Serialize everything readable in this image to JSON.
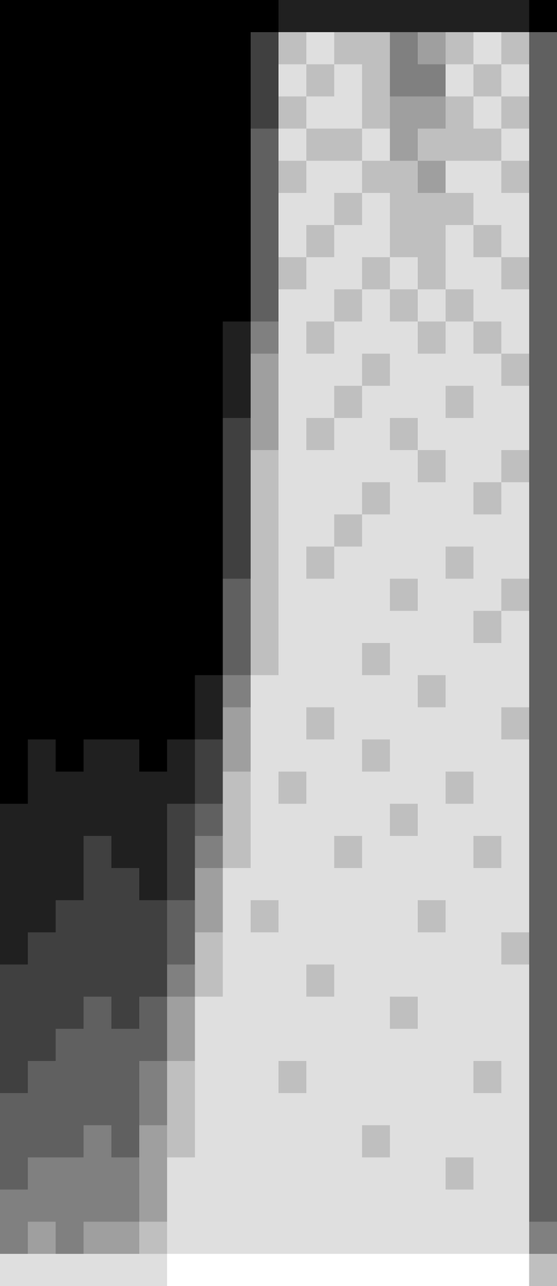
{
  "chart_data": {
    "type": "heatmap",
    "tick_labels": false,
    "grid": false,
    "cells": [
      [
        0,
        0,
        0,
        0,
        0,
        0,
        0,
        0,
        0,
        0,
        1,
        1,
        1,
        1,
        1,
        1,
        1,
        1,
        1,
        0
      ],
      [
        0,
        0,
        0,
        0,
        0,
        0,
        0,
        0,
        0,
        2,
        6,
        7,
        6,
        6,
        4,
        5,
        6,
        7,
        6,
        3
      ],
      [
        0,
        0,
        0,
        0,
        0,
        0,
        0,
        0,
        0,
        2,
        7,
        6,
        7,
        6,
        4,
        4,
        7,
        6,
        7,
        3
      ],
      [
        0,
        0,
        0,
        0,
        0,
        0,
        0,
        0,
        0,
        2,
        6,
        7,
        7,
        6,
        5,
        5,
        6,
        7,
        6,
        3
      ],
      [
        0,
        0,
        0,
        0,
        0,
        0,
        0,
        0,
        0,
        3,
        7,
        6,
        6,
        7,
        5,
        6,
        6,
        6,
        7,
        3
      ],
      [
        0,
        0,
        0,
        0,
        0,
        0,
        0,
        0,
        0,
        3,
        6,
        7,
        7,
        6,
        6,
        5,
        7,
        7,
        6,
        3
      ],
      [
        0,
        0,
        0,
        0,
        0,
        0,
        0,
        0,
        0,
        3,
        7,
        7,
        6,
        7,
        6,
        6,
        6,
        7,
        7,
        3
      ],
      [
        0,
        0,
        0,
        0,
        0,
        0,
        0,
        0,
        0,
        3,
        7,
        6,
        7,
        7,
        6,
        6,
        7,
        6,
        7,
        3
      ],
      [
        0,
        0,
        0,
        0,
        0,
        0,
        0,
        0,
        0,
        3,
        6,
        7,
        7,
        6,
        7,
        6,
        7,
        7,
        6,
        3
      ],
      [
        0,
        0,
        0,
        0,
        0,
        0,
        0,
        0,
        0,
        3,
        7,
        7,
        6,
        7,
        6,
        7,
        6,
        7,
        7,
        3
      ],
      [
        0,
        0,
        0,
        0,
        0,
        0,
        0,
        0,
        1,
        4,
        7,
        6,
        7,
        7,
        7,
        6,
        7,
        6,
        7,
        3
      ],
      [
        0,
        0,
        0,
        0,
        0,
        0,
        0,
        0,
        1,
        5,
        7,
        7,
        7,
        6,
        7,
        7,
        7,
        7,
        6,
        3
      ],
      [
        0,
        0,
        0,
        0,
        0,
        0,
        0,
        0,
        1,
        5,
        7,
        7,
        6,
        7,
        7,
        7,
        6,
        7,
        7,
        3
      ],
      [
        0,
        0,
        0,
        0,
        0,
        0,
        0,
        0,
        2,
        5,
        7,
        6,
        7,
        7,
        6,
        7,
        7,
        7,
        7,
        3
      ],
      [
        0,
        0,
        0,
        0,
        0,
        0,
        0,
        0,
        2,
        6,
        7,
        7,
        7,
        7,
        7,
        6,
        7,
        7,
        6,
        3
      ],
      [
        0,
        0,
        0,
        0,
        0,
        0,
        0,
        0,
        2,
        6,
        7,
        7,
        7,
        6,
        7,
        7,
        7,
        6,
        7,
        3
      ],
      [
        0,
        0,
        0,
        0,
        0,
        0,
        0,
        0,
        2,
        6,
        7,
        7,
        6,
        7,
        7,
        7,
        7,
        7,
        7,
        3
      ],
      [
        0,
        0,
        0,
        0,
        0,
        0,
        0,
        0,
        2,
        6,
        7,
        6,
        7,
        7,
        7,
        7,
        6,
        7,
        7,
        3
      ],
      [
        0,
        0,
        0,
        0,
        0,
        0,
        0,
        0,
        3,
        6,
        7,
        7,
        7,
        7,
        6,
        7,
        7,
        7,
        6,
        3
      ],
      [
        0,
        0,
        0,
        0,
        0,
        0,
        0,
        0,
        3,
        6,
        7,
        7,
        7,
        7,
        7,
        7,
        7,
        6,
        7,
        3
      ],
      [
        0,
        0,
        0,
        0,
        0,
        0,
        0,
        0,
        3,
        6,
        7,
        7,
        7,
        6,
        7,
        7,
        7,
        7,
        7,
        3
      ],
      [
        0,
        0,
        0,
        0,
        0,
        0,
        0,
        1,
        4,
        7,
        7,
        7,
        7,
        7,
        7,
        6,
        7,
        7,
        7,
        3
      ],
      [
        0,
        0,
        0,
        0,
        0,
        0,
        0,
        1,
        5,
        7,
        7,
        6,
        7,
        7,
        7,
        7,
        7,
        7,
        6,
        3
      ],
      [
        0,
        1,
        0,
        1,
        1,
        0,
        1,
        2,
        5,
        7,
        7,
        7,
        7,
        6,
        7,
        7,
        7,
        7,
        7,
        3
      ],
      [
        0,
        1,
        1,
        1,
        1,
        1,
        1,
        2,
        6,
        7,
        6,
        7,
        7,
        7,
        7,
        7,
        6,
        7,
        7,
        3
      ],
      [
        1,
        1,
        1,
        1,
        1,
        1,
        2,
        3,
        6,
        7,
        7,
        7,
        7,
        7,
        6,
        7,
        7,
        7,
        7,
        3
      ],
      [
        1,
        1,
        1,
        2,
        1,
        1,
        2,
        4,
        6,
        7,
        7,
        7,
        6,
        7,
        7,
        7,
        7,
        6,
        7,
        3
      ],
      [
        1,
        1,
        1,
        2,
        2,
        1,
        2,
        5,
        7,
        7,
        7,
        7,
        7,
        7,
        7,
        7,
        7,
        7,
        7,
        3
      ],
      [
        1,
        1,
        2,
        2,
        2,
        2,
        3,
        5,
        7,
        6,
        7,
        7,
        7,
        7,
        7,
        6,
        7,
        7,
        7,
        3
      ],
      [
        1,
        2,
        2,
        2,
        2,
        2,
        3,
        6,
        7,
        7,
        7,
        7,
        7,
        7,
        7,
        7,
        7,
        7,
        6,
        3
      ],
      [
        2,
        2,
        2,
        2,
        2,
        2,
        4,
        6,
        7,
        7,
        7,
        6,
        7,
        7,
        7,
        7,
        7,
        7,
        7,
        3
      ],
      [
        2,
        2,
        2,
        3,
        2,
        3,
        5,
        7,
        7,
        7,
        7,
        7,
        7,
        7,
        6,
        7,
        7,
        7,
        7,
        3
      ],
      [
        2,
        2,
        3,
        3,
        3,
        3,
        5,
        7,
        7,
        7,
        7,
        7,
        7,
        7,
        7,
        7,
        7,
        7,
        7,
        3
      ],
      [
        2,
        3,
        3,
        3,
        3,
        4,
        6,
        7,
        7,
        7,
        6,
        7,
        7,
        7,
        7,
        7,
        7,
        6,
        7,
        3
      ],
      [
        3,
        3,
        3,
        3,
        3,
        4,
        6,
        7,
        7,
        7,
        7,
        7,
        7,
        7,
        7,
        7,
        7,
        7,
        7,
        3
      ],
      [
        3,
        3,
        3,
        4,
        3,
        5,
        6,
        7,
        7,
        7,
        7,
        7,
        7,
        6,
        7,
        7,
        7,
        7,
        7,
        3
      ],
      [
        3,
        4,
        4,
        4,
        4,
        5,
        7,
        7,
        7,
        7,
        7,
        7,
        7,
        7,
        7,
        7,
        6,
        7,
        7,
        3
      ],
      [
        4,
        4,
        4,
        4,
        4,
        5,
        7,
        7,
        7,
        7,
        7,
        7,
        7,
        7,
        7,
        7,
        7,
        7,
        7,
        3
      ],
      [
        4,
        5,
        4,
        5,
        5,
        6,
        7,
        7,
        7,
        7,
        7,
        7,
        7,
        7,
        7,
        7,
        7,
        7,
        7,
        4
      ],
      [
        7,
        7,
        7,
        7,
        7,
        7,
        8,
        8,
        8,
        8,
        8,
        8,
        8,
        8,
        8,
        8,
        8,
        8,
        8,
        6
      ]
    ]
  }
}
